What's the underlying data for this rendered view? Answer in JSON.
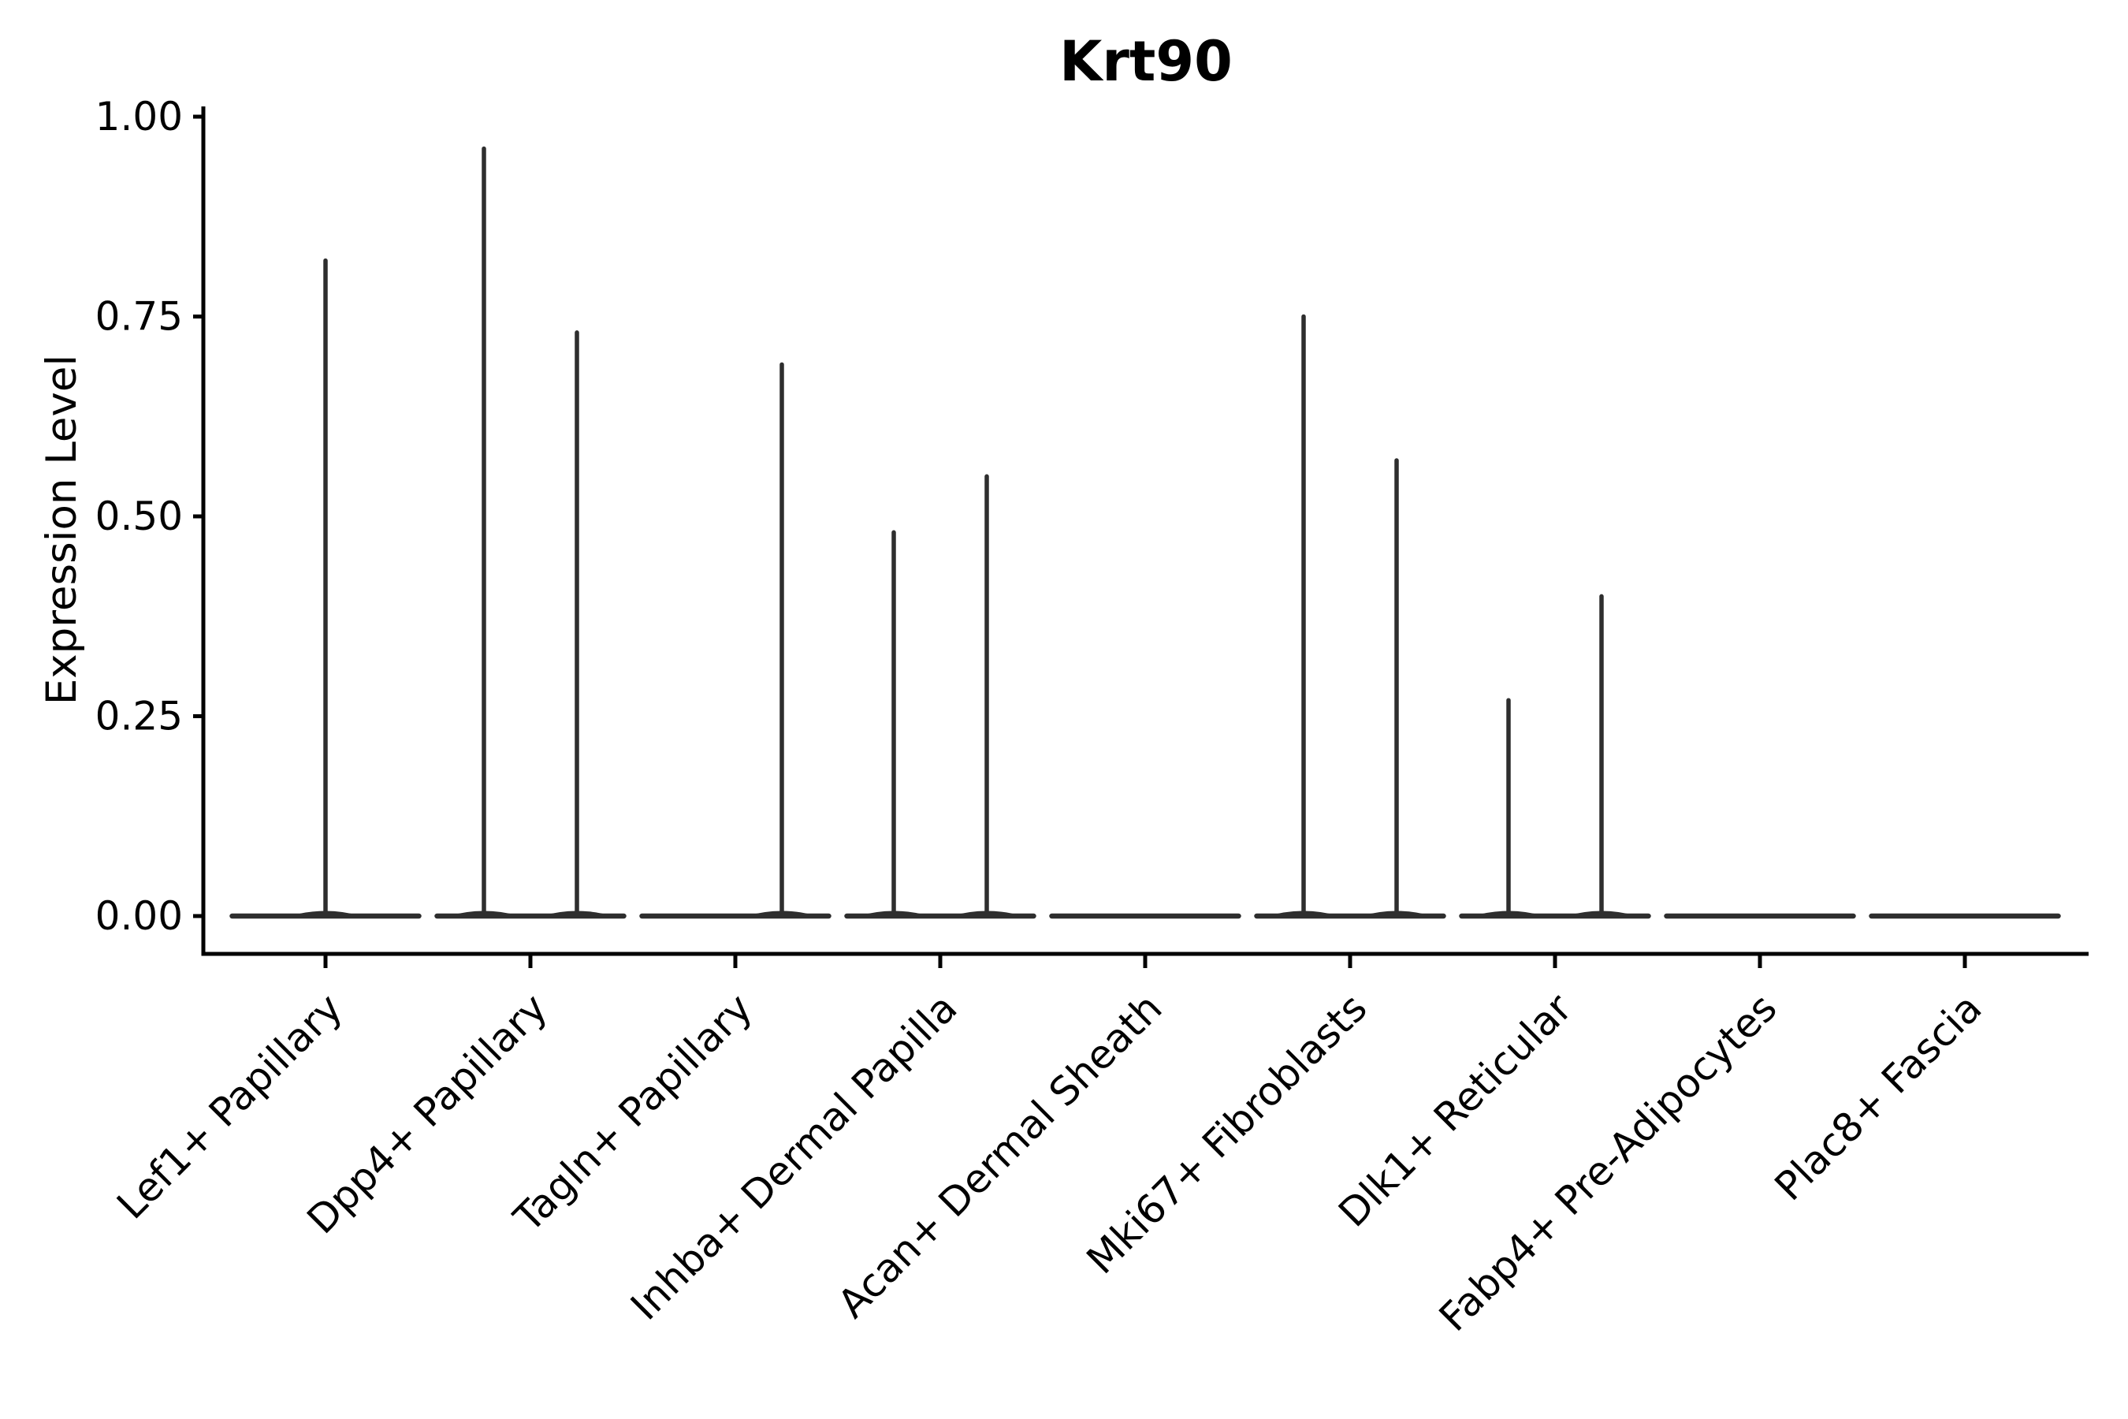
{
  "chart_data": {
    "type": "violin",
    "title": "Krt90",
    "ylabel": "Expression Level",
    "xlabel": "",
    "ylim": [
      0,
      1.0
    ],
    "grid": false,
    "legend": "none",
    "yticks": [
      {
        "value": 0.0,
        "label": "0.00"
      },
      {
        "value": 0.25,
        "label": "0.25"
      },
      {
        "value": 0.5,
        "label": "0.50"
      },
      {
        "value": 0.75,
        "label": "0.75"
      },
      {
        "value": 1.0,
        "label": "1.00"
      }
    ],
    "categories": [
      "Lef1+ Papillary",
      "Dpp4+ Papillary",
      "Tagln+ Papillary",
      "Inhba+ Dermal Papilla",
      "Acan+ Dermal Sheath",
      "Mki67+ Fibroblasts",
      "Dlk1+ Reticular",
      "Fabp4+ Pre-Adipocytes",
      "Plac8+ Fascia"
    ],
    "violins": [
      {
        "category": "Lef1+ Papillary",
        "baseline": 0.0,
        "spikes": [
          {
            "side": "center",
            "max": 0.82
          }
        ]
      },
      {
        "category": "Dpp4+ Papillary",
        "baseline": 0.0,
        "spikes": [
          {
            "side": "left",
            "max": 0.96
          },
          {
            "side": "right",
            "max": 0.73
          }
        ]
      },
      {
        "category": "Tagln+ Papillary",
        "baseline": 0.0,
        "spikes": [
          {
            "side": "right",
            "max": 0.69
          }
        ]
      },
      {
        "category": "Inhba+ Dermal Papilla",
        "baseline": 0.0,
        "spikes": [
          {
            "side": "left",
            "max": 0.48
          },
          {
            "side": "right",
            "max": 0.55
          }
        ]
      },
      {
        "category": "Acan+ Dermal Sheath",
        "baseline": 0.0,
        "spikes": []
      },
      {
        "category": "Mki67+ Fibroblasts",
        "baseline": 0.0,
        "spikes": [
          {
            "side": "left",
            "max": 0.75
          },
          {
            "side": "right",
            "max": 0.57
          }
        ]
      },
      {
        "category": "Dlk1+ Reticular",
        "baseline": 0.0,
        "spikes": [
          {
            "side": "left",
            "max": 0.27
          },
          {
            "side": "right",
            "max": 0.4
          }
        ]
      },
      {
        "category": "Fabp4+ Pre-Adipocytes",
        "baseline": 0.0,
        "spikes": []
      },
      {
        "category": "Plac8+ Fascia",
        "baseline": 0.0,
        "spikes": []
      }
    ],
    "colors": {
      "axis": "#000000",
      "text": "#000000",
      "violin": "#2e2e2e",
      "background": "#ffffff"
    }
  }
}
